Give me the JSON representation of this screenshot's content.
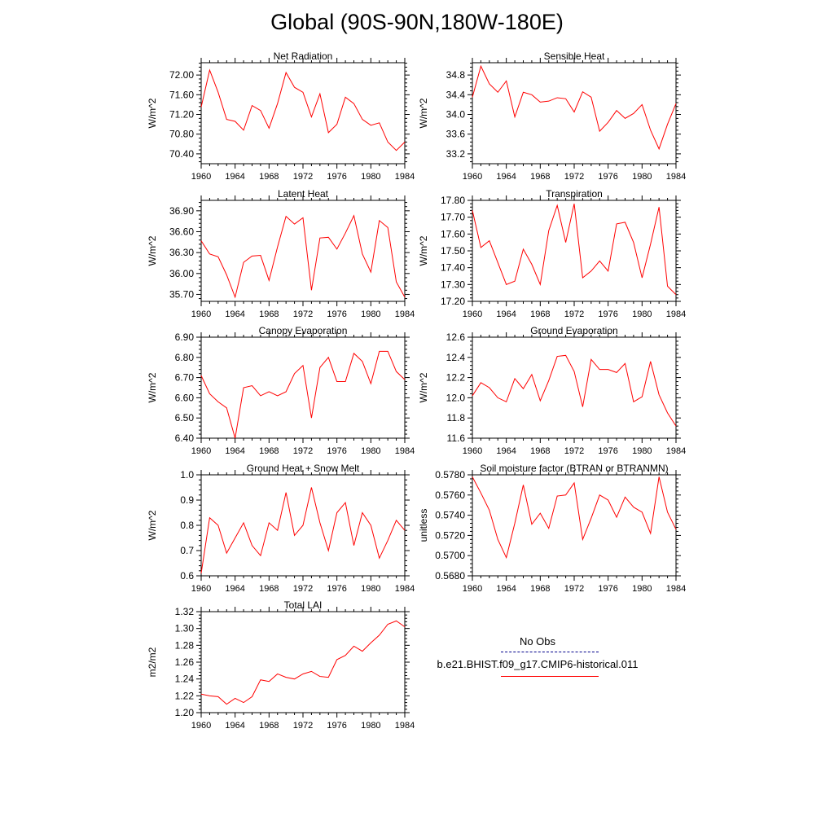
{
  "page": {
    "title": "Global (90S-90N,180W-180E)"
  },
  "colors": {
    "model_line": "#ff0000",
    "obs_line": "#00008b",
    "axis": "#000000"
  },
  "legend": {
    "obs_label": "No Obs",
    "model_label": "b.e21.BHIST.f09_g17.CMIP6-historical.011"
  },
  "chart_data": [
    {
      "type": "line",
      "title": "Net Radiation",
      "xlabel": "",
      "ylabel": "W/m^2",
      "xlim": [
        1960,
        1984
      ],
      "ylim": [
        70.2,
        72.25
      ],
      "xticks": [
        "1960",
        "1964",
        "1968",
        "1972",
        "1976",
        "1980",
        "1984"
      ],
      "yticks": [
        "70.40",
        "70.80",
        "71.20",
        "71.60",
        "72.00"
      ],
      "x": [
        1960,
        1961,
        1962,
        1963,
        1964,
        1965,
        1966,
        1967,
        1968,
        1969,
        1970,
        1971,
        1972,
        1973,
        1974,
        1975,
        1976,
        1977,
        1978,
        1979,
        1980,
        1981,
        1982,
        1983,
        1984
      ],
      "series": [
        {
          "values": [
            71.35,
            72.1,
            71.65,
            71.1,
            71.06,
            70.88,
            71.38,
            71.28,
            70.92,
            71.42,
            72.05,
            71.75,
            71.65,
            71.15,
            71.62,
            70.83,
            71.0,
            71.55,
            71.42,
            71.1,
            70.98,
            71.03,
            70.64,
            70.47,
            70.64
          ]
        }
      ]
    },
    {
      "type": "line",
      "title": "Sensible Heat",
      "xlabel": "",
      "ylabel": "W/m^2",
      "xlim": [
        1960,
        1984
      ],
      "ylim": [
        33.0,
        35.05
      ],
      "xticks": [
        "1960",
        "1964",
        "1968",
        "1972",
        "1976",
        "1980",
        "1984"
      ],
      "yticks": [
        "33.2",
        "33.6",
        "34.0",
        "34.4",
        "34.8"
      ],
      "x": [
        1960,
        1961,
        1962,
        1963,
        1964,
        1965,
        1966,
        1967,
        1968,
        1969,
        1970,
        1971,
        1972,
        1973,
        1974,
        1975,
        1976,
        1977,
        1978,
        1979,
        1980,
        1981,
        1982,
        1983,
        1984
      ],
      "series": [
        {
          "values": [
            34.35,
            34.98,
            34.62,
            34.45,
            34.68,
            33.95,
            34.45,
            34.4,
            34.25,
            34.27,
            34.34,
            34.32,
            34.05,
            34.46,
            34.35,
            33.66,
            33.84,
            34.08,
            33.92,
            34.02,
            34.2,
            33.68,
            33.3,
            33.8,
            34.22
          ]
        }
      ]
    },
    {
      "type": "line",
      "title": "Latent Heat",
      "xlabel": "",
      "ylabel": "W/m^2",
      "xlim": [
        1960,
        1984
      ],
      "ylim": [
        35.6,
        37.05
      ],
      "xticks": [
        "1960",
        "1964",
        "1968",
        "1972",
        "1976",
        "1980",
        "1984"
      ],
      "yticks": [
        "35.70",
        "36.00",
        "36.30",
        "36.60",
        "36.90"
      ],
      "x": [
        1960,
        1961,
        1962,
        1963,
        1964,
        1965,
        1966,
        1967,
        1968,
        1969,
        1970,
        1971,
        1972,
        1973,
        1974,
        1975,
        1976,
        1977,
        1978,
        1979,
        1980,
        1981,
        1982,
        1983,
        1984
      ],
      "series": [
        {
          "values": [
            36.47,
            36.28,
            36.24,
            35.98,
            35.66,
            36.16,
            36.25,
            36.26,
            35.9,
            36.38,
            36.82,
            36.71,
            36.8,
            35.76,
            36.51,
            36.52,
            36.35,
            36.58,
            36.83,
            36.28,
            36.02,
            36.76,
            36.66,
            35.88,
            35.66
          ]
        }
      ]
    },
    {
      "type": "line",
      "title": "Transpiration",
      "xlabel": "",
      "ylabel": "W/m^2",
      "xlim": [
        1960,
        1984
      ],
      "ylim": [
        17.2,
        17.8
      ],
      "xticks": [
        "1960",
        "1964",
        "1968",
        "1972",
        "1976",
        "1980",
        "1984"
      ],
      "yticks": [
        "17.20",
        "17.30",
        "17.40",
        "17.50",
        "17.60",
        "17.70",
        "17.80"
      ],
      "x": [
        1960,
        1961,
        1962,
        1963,
        1964,
        1965,
        1966,
        1967,
        1968,
        1969,
        1970,
        1971,
        1972,
        1973,
        1974,
        1975,
        1976,
        1977,
        1978,
        1979,
        1980,
        1981,
        1982,
        1983,
        1984
      ],
      "series": [
        {
          "values": [
            17.74,
            17.52,
            17.56,
            17.43,
            17.3,
            17.32,
            17.51,
            17.42,
            17.3,
            17.62,
            17.77,
            17.55,
            17.78,
            17.34,
            17.38,
            17.44,
            17.38,
            17.66,
            17.67,
            17.55,
            17.34,
            17.54,
            17.76,
            17.29,
            17.24
          ]
        }
      ]
    },
    {
      "type": "line",
      "title": "Canopy Evaporation",
      "xlabel": "",
      "ylabel": "W/m^2",
      "xlim": [
        1960,
        1984
      ],
      "ylim": [
        6.4,
        6.9
      ],
      "xticks": [
        "1960",
        "1964",
        "1968",
        "1972",
        "1976",
        "1980",
        "1984"
      ],
      "yticks": [
        "6.40",
        "6.50",
        "6.60",
        "6.70",
        "6.80",
        "6.90"
      ],
      "x": [
        1960,
        1961,
        1962,
        1963,
        1964,
        1965,
        1966,
        1967,
        1968,
        1969,
        1970,
        1971,
        1972,
        1973,
        1974,
        1975,
        1976,
        1977,
        1978,
        1979,
        1980,
        1981,
        1982,
        1983,
        1984
      ],
      "series": [
        {
          "values": [
            6.71,
            6.62,
            6.58,
            6.55,
            6.4,
            6.65,
            6.66,
            6.61,
            6.63,
            6.61,
            6.63,
            6.72,
            6.76,
            6.5,
            6.75,
            6.8,
            6.68,
            6.68,
            6.82,
            6.78,
            6.67,
            6.83,
            6.83,
            6.73,
            6.69
          ]
        }
      ]
    },
    {
      "type": "line",
      "title": "Ground Evaporation",
      "xlabel": "",
      "ylabel": "W/m^2",
      "xlim": [
        1960,
        1984
      ],
      "ylim": [
        11.6,
        12.6
      ],
      "xticks": [
        "1960",
        "1964",
        "1968",
        "1972",
        "1976",
        "1980",
        "1984"
      ],
      "yticks": [
        "11.6",
        "11.8",
        "12.0",
        "12.2",
        "12.4",
        "12.6"
      ],
      "x": [
        1960,
        1961,
        1962,
        1963,
        1964,
        1965,
        1966,
        1967,
        1968,
        1969,
        1970,
        1971,
        1972,
        1973,
        1974,
        1975,
        1976,
        1977,
        1978,
        1979,
        1980,
        1981,
        1982,
        1983,
        1984
      ],
      "series": [
        {
          "values": [
            12.02,
            12.15,
            12.1,
            12.0,
            11.96,
            12.19,
            12.09,
            12.23,
            11.97,
            12.17,
            12.41,
            12.42,
            12.26,
            11.91,
            12.38,
            12.28,
            12.28,
            12.25,
            12.34,
            11.96,
            12.01,
            12.36,
            12.03,
            11.85,
            11.72
          ]
        }
      ]
    },
    {
      "type": "line",
      "title": "Ground Heat + Snow Melt",
      "xlabel": "",
      "ylabel": "W/m^2",
      "xlim": [
        1960,
        1984
      ],
      "ylim": [
        0.6,
        1.0
      ],
      "xticks": [
        "1960",
        "1964",
        "1968",
        "1972",
        "1976",
        "1980",
        "1984"
      ],
      "yticks": [
        "0.6",
        "0.7",
        "0.8",
        "0.9",
        "1.0"
      ],
      "x": [
        1960,
        1961,
        1962,
        1963,
        1964,
        1965,
        1966,
        1967,
        1968,
        1969,
        1970,
        1971,
        1972,
        1973,
        1974,
        1975,
        1976,
        1977,
        1978,
        1979,
        1980,
        1981,
        1982,
        1983,
        1984
      ],
      "series": [
        {
          "values": [
            0.61,
            0.83,
            0.8,
            0.69,
            0.75,
            0.81,
            0.72,
            0.68,
            0.81,
            0.78,
            0.93,
            0.76,
            0.8,
            0.95,
            0.81,
            0.7,
            0.85,
            0.89,
            0.72,
            0.85,
            0.8,
            0.67,
            0.74,
            0.82,
            0.78
          ]
        }
      ]
    },
    {
      "type": "line",
      "title": "Soil moisture factor (BTRAN or BTRANMN)",
      "xlabel": "",
      "ylabel": "unitless",
      "xlim": [
        1960,
        1984
      ],
      "ylim": [
        0.568,
        0.578
      ],
      "xticks": [
        "1960",
        "1964",
        "1968",
        "1972",
        "1976",
        "1980",
        "1984"
      ],
      "yticks": [
        "0.5680",
        "0.5700",
        "0.5720",
        "0.5740",
        "0.5760",
        "0.5780"
      ],
      "x": [
        1960,
        1961,
        1962,
        1963,
        1964,
        1965,
        1966,
        1967,
        1968,
        1969,
        1970,
        1971,
        1972,
        1973,
        1974,
        1975,
        1976,
        1977,
        1978,
        1979,
        1980,
        1981,
        1982,
        1983,
        1984
      ],
      "series": [
        {
          "values": [
            0.5778,
            0.5762,
            0.5745,
            0.5716,
            0.5698,
            0.5732,
            0.577,
            0.5731,
            0.5742,
            0.5727,
            0.5759,
            0.576,
            0.5772,
            0.5716,
            0.5737,
            0.576,
            0.5755,
            0.5738,
            0.5758,
            0.5748,
            0.5743,
            0.5722,
            0.5778,
            0.5743,
            0.5726
          ]
        }
      ]
    },
    {
      "type": "line",
      "title": "Total LAI",
      "xlabel": "",
      "ylabel": "m2/m2",
      "xlim": [
        1960,
        1984
      ],
      "ylim": [
        1.2,
        1.32
      ],
      "xticks": [
        "1960",
        "1964",
        "1968",
        "1972",
        "1976",
        "1980",
        "1984"
      ],
      "yticks": [
        "1.20",
        "1.22",
        "1.24",
        "1.26",
        "1.28",
        "1.30",
        "1.32"
      ],
      "x": [
        1960,
        1961,
        1962,
        1963,
        1964,
        1965,
        1966,
        1967,
        1968,
        1969,
        1970,
        1971,
        1972,
        1973,
        1974,
        1975,
        1976,
        1977,
        1978,
        1979,
        1980,
        1981,
        1982,
        1983,
        1984
      ],
      "series": [
        {
          "values": [
            1.222,
            1.22,
            1.219,
            1.21,
            1.217,
            1.212,
            1.219,
            1.239,
            1.237,
            1.246,
            1.242,
            1.24,
            1.246,
            1.249,
            1.243,
            1.242,
            1.263,
            1.268,
            1.279,
            1.273,
            1.283,
            1.292,
            1.305,
            1.309,
            1.302
          ]
        }
      ]
    }
  ]
}
